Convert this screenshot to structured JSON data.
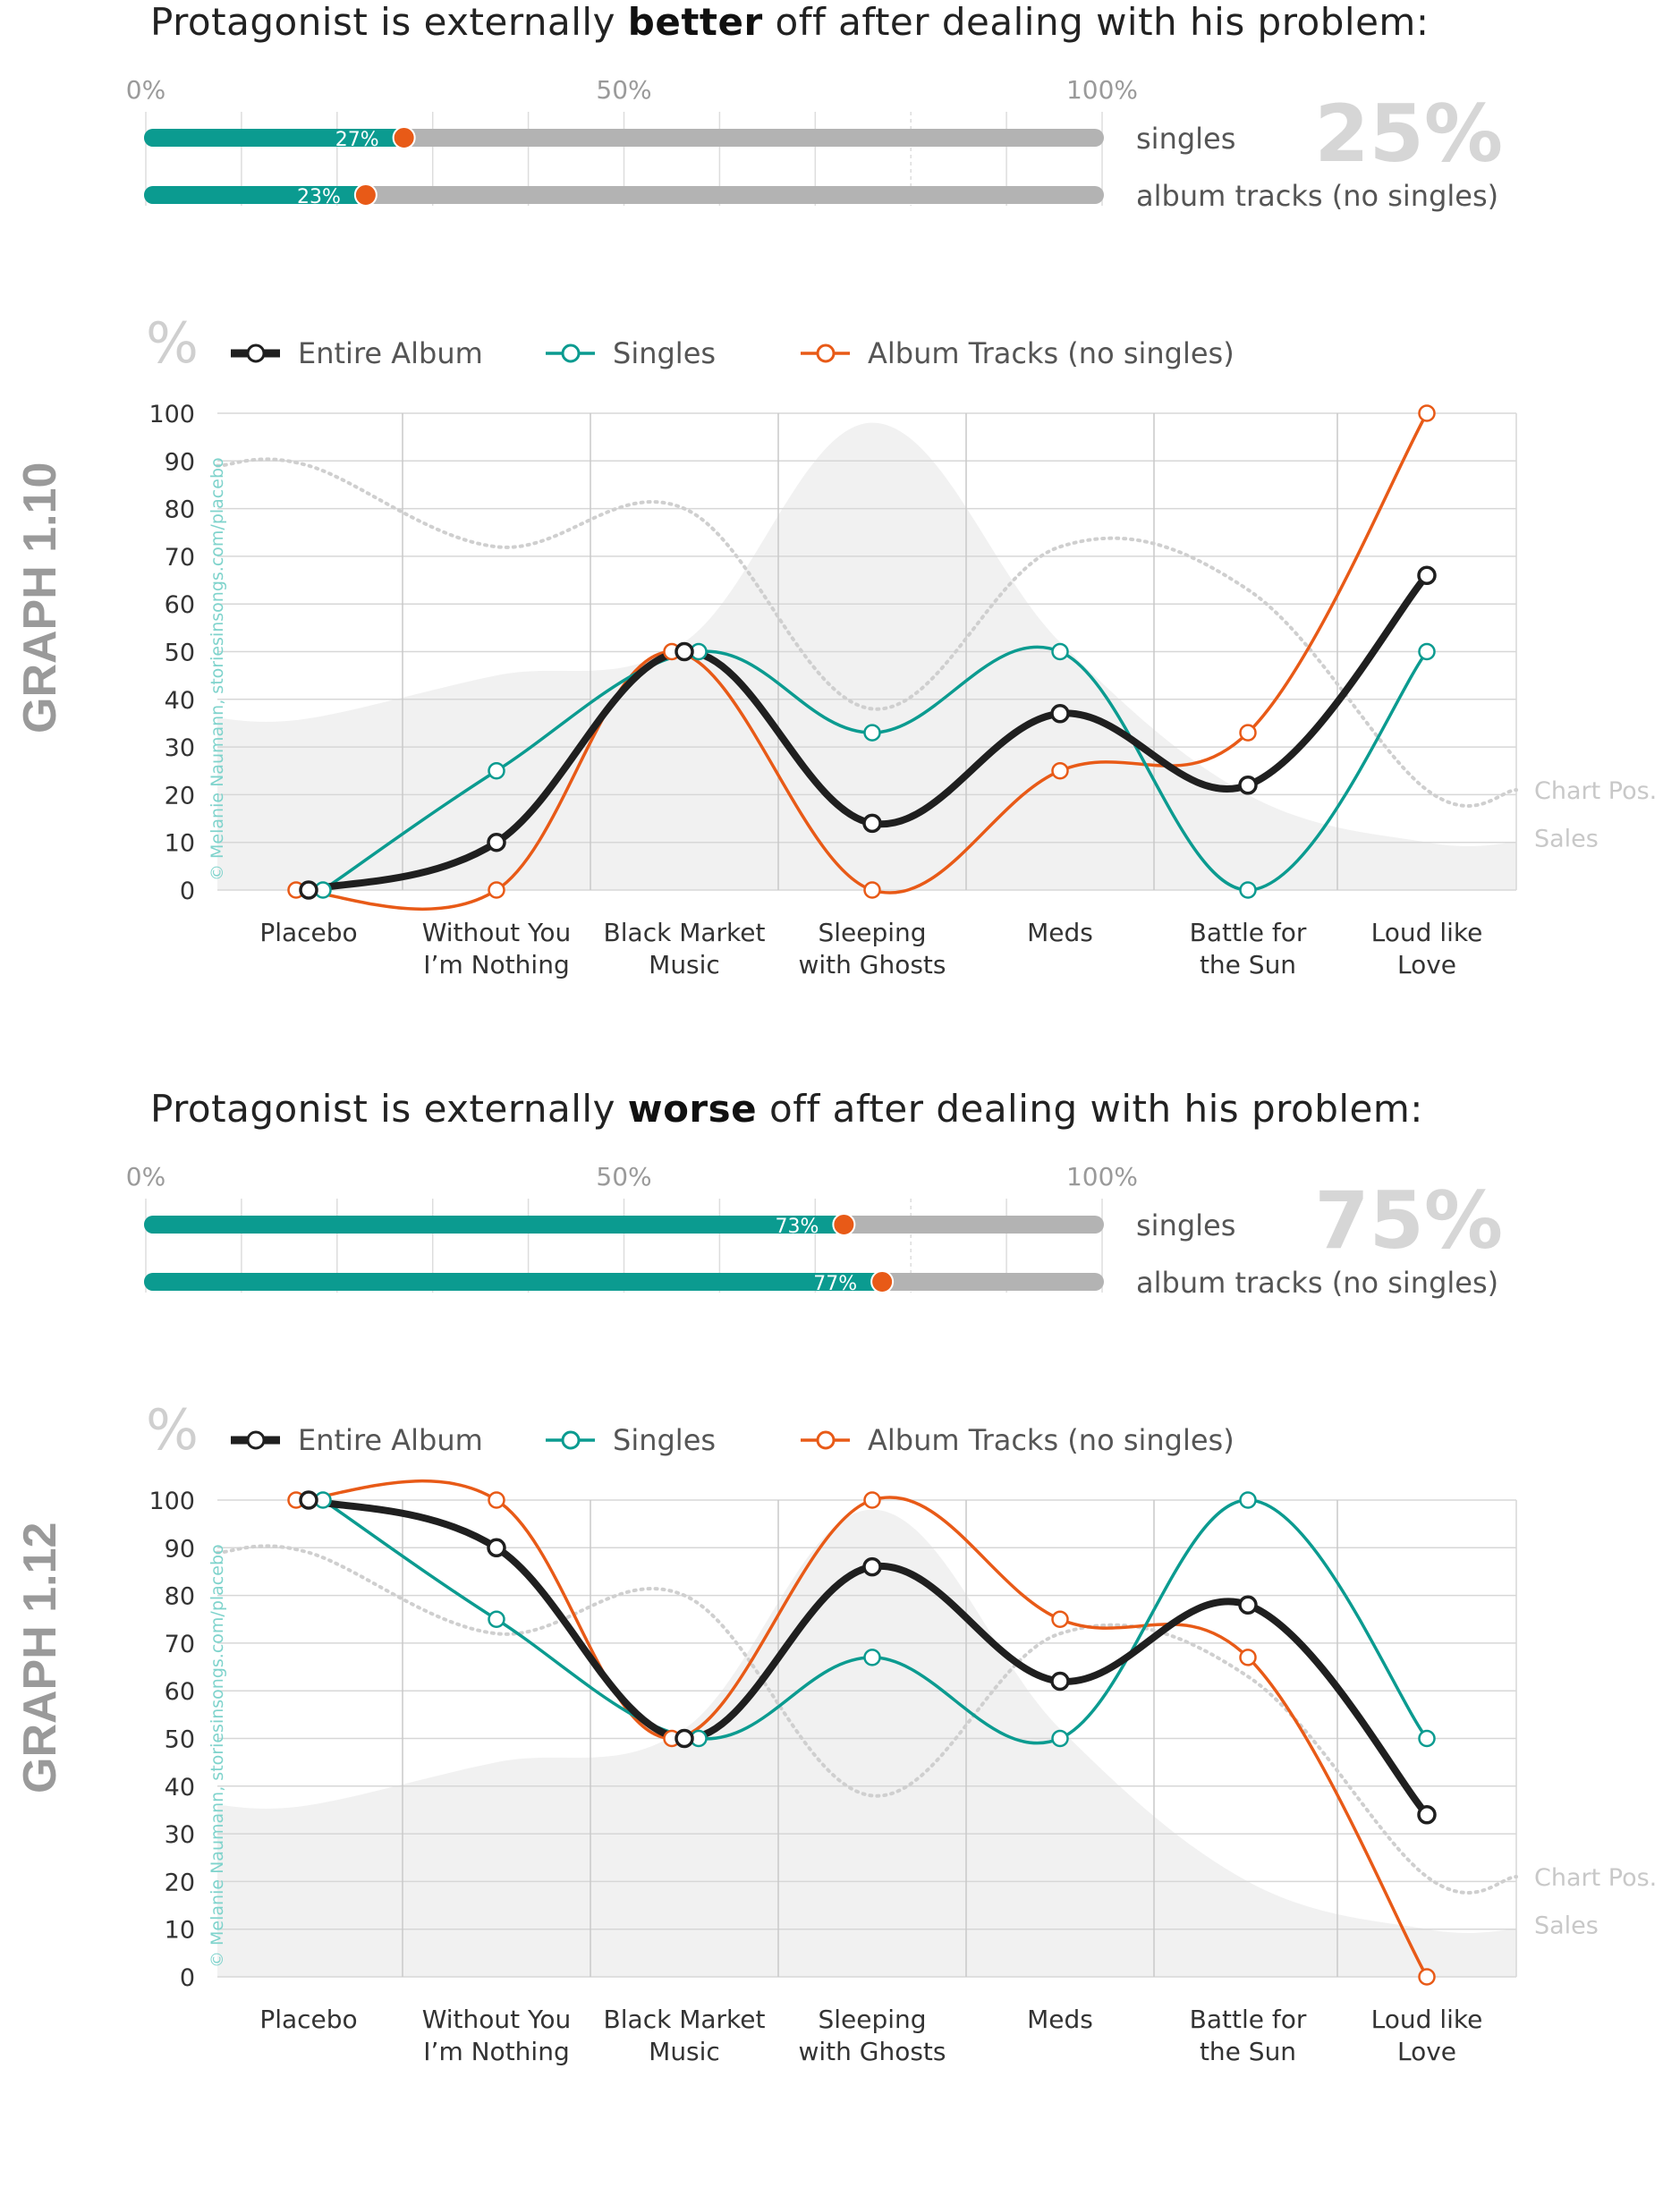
{
  "sections": [
    {
      "graph_label": "GRAPH 1.10",
      "heading_pre": "Protagonist is externally ",
      "heading_bold": "better",
      "heading_post": " off after dealing with his problem:",
      "big_percent": "25%",
      "percent_axis": [
        "0%",
        "50%",
        "100%"
      ],
      "bars": [
        {
          "label": "singles",
          "value": 27,
          "value_label": "27%"
        },
        {
          "label": "album tracks (no singles)",
          "value": 23,
          "value_label": "23%"
        }
      ],
      "copyright": "© Melanie Naumann, storiesinsongs.com/placebo",
      "chart_data": {
        "type": "line",
        "ylabel": "%",
        "ylim": [
          0,
          100
        ],
        "yticks": [
          0,
          10,
          20,
          30,
          40,
          50,
          60,
          70,
          80,
          90,
          100
        ],
        "categories": [
          "Placebo",
          "Without You I’m Nothing",
          "Black Market Music",
          "Sleeping with Ghosts",
          "Meds",
          "Battle for the Sun",
          "Loud like Love"
        ],
        "category_lines": [
          [
            "Placebo"
          ],
          [
            "Without You",
            "I’m Nothing"
          ],
          [
            "Black Market",
            "Music"
          ],
          [
            "Sleeping",
            "with Ghosts"
          ],
          [
            "Meds"
          ],
          [
            "Battle for",
            "the Sun"
          ],
          [
            "Loud like",
            "Love"
          ]
        ],
        "series": [
          {
            "name": "Entire Album",
            "color": "#1f1f1f",
            "values": [
              0,
              10,
              50,
              14,
              37,
              22,
              66
            ]
          },
          {
            "name": "Singles",
            "color": "#0b9b90",
            "values": [
              0,
              25,
              50,
              33,
              50,
              0,
              50
            ]
          },
          {
            "name": "Album Tracks (no singles)",
            "color": "#e85a17",
            "values": [
              0,
              0,
              50,
              0,
              25,
              33,
              100
            ]
          }
        ],
        "background_series": [
          {
            "name": "Chart Pos.",
            "style": "dotted",
            "values": [
              89,
              72,
              80,
              38,
              72,
              63,
              21
            ]
          },
          {
            "name": "Sales",
            "style": "area",
            "values": [
              36,
              45,
              52,
              98,
              52,
              20,
              10
            ]
          }
        ]
      }
    },
    {
      "graph_label": "GRAPH 1.12",
      "heading_pre": "Protagonist is externally ",
      "heading_bold": "worse",
      "heading_post": " off after dealing with his problem:",
      "big_percent": "75%",
      "percent_axis": [
        "0%",
        "50%",
        "100%"
      ],
      "bars": [
        {
          "label": "singles",
          "value": 73,
          "value_label": "73%"
        },
        {
          "label": "album tracks (no singles)",
          "value": 77,
          "value_label": "77%"
        }
      ],
      "copyright": "© Melanie Naumann, storiesinsongs.com/placebo",
      "chart_data": {
        "type": "line",
        "ylabel": "%",
        "ylim": [
          0,
          100
        ],
        "yticks": [
          0,
          10,
          20,
          30,
          40,
          50,
          60,
          70,
          80,
          90,
          100
        ],
        "categories": [
          "Placebo",
          "Without You I’m Nothing",
          "Black Market Music",
          "Sleeping with Ghosts",
          "Meds",
          "Battle for the Sun",
          "Loud like Love"
        ],
        "category_lines": [
          [
            "Placebo"
          ],
          [
            "Without You",
            "I’m Nothing"
          ],
          [
            "Black Market",
            "Music"
          ],
          [
            "Sleeping",
            "with Ghosts"
          ],
          [
            "Meds"
          ],
          [
            "Battle for",
            "the Sun"
          ],
          [
            "Loud like",
            "Love"
          ]
        ],
        "series": [
          {
            "name": "Entire Album",
            "color": "#1f1f1f",
            "values": [
              100,
              90,
              50,
              86,
              62,
              78,
              34
            ]
          },
          {
            "name": "Singles",
            "color": "#0b9b90",
            "values": [
              100,
              75,
              50,
              67,
              50,
              100,
              50
            ]
          },
          {
            "name": "Album Tracks (no singles)",
            "color": "#e85a17",
            "values": [
              100,
              100,
              50,
              100,
              75,
              67,
              0
            ]
          }
        ],
        "background_series": [
          {
            "name": "Chart Pos.",
            "style": "dotted",
            "values": [
              89,
              72,
              80,
              38,
              72,
              63,
              21
            ]
          },
          {
            "name": "Sales",
            "style": "area",
            "values": [
              36,
              45,
              52,
              98,
              52,
              20,
              10
            ]
          }
        ]
      }
    }
  ]
}
